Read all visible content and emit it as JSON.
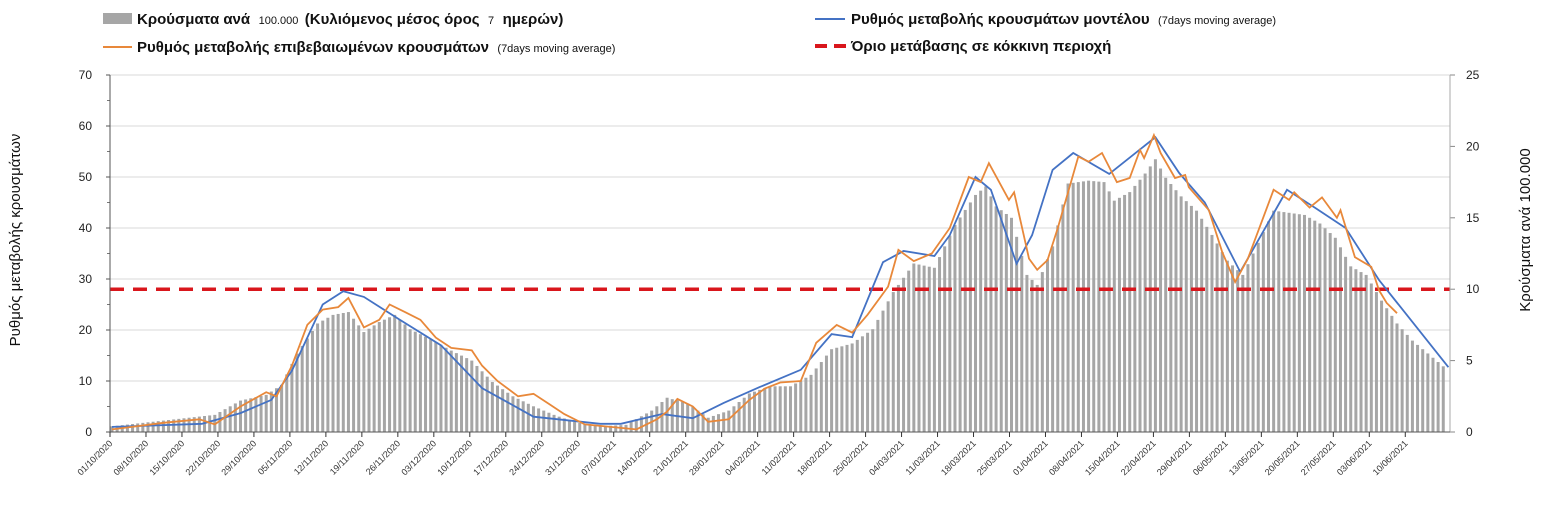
{
  "chart_data": {
    "type": "bar+line",
    "legend": {
      "bars": {
        "parts": [
          "Κρούσματα ανά",
          "100.000",
          "(Κυλιόμενος μέσος όρος",
          "7",
          "ημερών)"
        ]
      },
      "confirmed": {
        "main": "Ρυθμός μεταβολής επιβεβαιωμένων κρουσμάτων",
        "note": "(7days moving average)"
      },
      "model": {
        "main": "Ρυθμός μεταβολής κρουσμάτων μοντέλου",
        "note": "(7days moving average)"
      },
      "threshold": {
        "main": "Όριο μετάβασης σε κόκκινη περιοχή"
      }
    },
    "ylabel_left": "Ρυθμός μεταβολής κρουσμάτων",
    "ylabel_right": "Κρούσματα ανά 100.000",
    "ylim_left": [
      0,
      70
    ],
    "yticks_left": [
      "0",
      "10",
      "20",
      "30",
      "40",
      "50",
      "60",
      "70"
    ],
    "ylim_right": [
      0,
      25
    ],
    "yticks_right": [
      "0",
      "5",
      "10",
      "15",
      "20",
      "25"
    ],
    "x_start": "01/10/2020",
    "n_days": 261,
    "xticks": [
      "01/10/2020",
      "08/10/2020",
      "15/10/2020",
      "22/10/2020",
      "29/10/2020",
      "05/11/2020",
      "12/11/2020",
      "19/11/2020",
      "26/11/2020",
      "03/12/2020",
      "10/12/2020",
      "17/12/2020",
      "24/12/2020",
      "31/12/2020",
      "07/01/2021",
      "14/01/2021",
      "21/01/2021",
      "28/01/2021",
      "04/02/2021",
      "11/02/2021",
      "18/02/2021",
      "25/02/2021",
      "04/03/2021",
      "11/03/2021",
      "18/03/2021",
      "25/03/2021",
      "01/04/2021",
      "08/04/2021",
      "15/04/2021",
      "22/04/2021",
      "29/04/2021",
      "06/05/2021",
      "13/05/2021",
      "20/05/2021",
      "27/05/2021",
      "03/06/2021",
      "10/06/2021"
    ],
    "threshold_left": 28,
    "colors": {
      "bars": "#a6a6a6",
      "confirmed": "#e8883a",
      "model": "#4472c4",
      "threshold": "#d9161c",
      "grid": "#d9d9d9"
    },
    "series": [
      {
        "name": "cases_per_100k_right_axis",
        "axis": "right",
        "kind": "bar",
        "points": [
          [
            0,
            0.4
          ],
          [
            10,
            0.8
          ],
          [
            20,
            1.2
          ],
          [
            25,
            2.2
          ],
          [
            30,
            2.6
          ],
          [
            33,
            3.3
          ],
          [
            36,
            5.5
          ],
          [
            40,
            7.6
          ],
          [
            43,
            8.2
          ],
          [
            46,
            8.4
          ],
          [
            49,
            7.0
          ],
          [
            52,
            7.7
          ],
          [
            55,
            8.2
          ],
          [
            58,
            7.2
          ],
          [
            62,
            6.5
          ],
          [
            66,
            5.7
          ],
          [
            70,
            5.0
          ],
          [
            74,
            3.5
          ],
          [
            78,
            2.5
          ],
          [
            82,
            1.8
          ],
          [
            86,
            1.2
          ],
          [
            90,
            0.7
          ],
          [
            95,
            0.4
          ],
          [
            100,
            0.5
          ],
          [
            105,
            1.5
          ],
          [
            108,
            2.4
          ],
          [
            112,
            2.0
          ],
          [
            116,
            1.0
          ],
          [
            120,
            1.5
          ],
          [
            124,
            2.7
          ],
          [
            128,
            3.2
          ],
          [
            132,
            3.2
          ],
          [
            136,
            4.0
          ],
          [
            140,
            5.8
          ],
          [
            144,
            6.2
          ],
          [
            148,
            7.2
          ],
          [
            152,
            9.8
          ],
          [
            156,
            11.8
          ],
          [
            160,
            11.5
          ],
          [
            164,
            14.5
          ],
          [
            168,
            16.6
          ],
          [
            170,
            17.2
          ],
          [
            172,
            15.8
          ],
          [
            175,
            15.0
          ],
          [
            178,
            11.0
          ],
          [
            180,
            10.3
          ],
          [
            183,
            13.0
          ],
          [
            186,
            17.4
          ],
          [
            190,
            17.6
          ],
          [
            193,
            17.5
          ],
          [
            195,
            16.2
          ],
          [
            198,
            16.8
          ],
          [
            201,
            18.1
          ],
          [
            203,
            19.1
          ],
          [
            205,
            17.8
          ],
          [
            208,
            16.5
          ],
          [
            211,
            15.5
          ],
          [
            214,
            13.8
          ],
          [
            217,
            12.0
          ],
          [
            220,
            11.0
          ],
          [
            222,
            12.5
          ],
          [
            226,
            15.5
          ],
          [
            228,
            15.4
          ],
          [
            232,
            15.2
          ],
          [
            235,
            14.6
          ],
          [
            238,
            13.6
          ],
          [
            241,
            11.6
          ],
          [
            244,
            11.0
          ],
          [
            247,
            9.2
          ],
          [
            250,
            7.6
          ],
          [
            253,
            6.4
          ],
          [
            256,
            5.5
          ],
          [
            260,
            4.3
          ]
        ]
      },
      {
        "name": "confirmed_rate",
        "axis": "left",
        "kind": "line",
        "points": [
          [
            0,
            0.5
          ],
          [
            10,
            1.8
          ],
          [
            17,
            2.5
          ],
          [
            20,
            1.5
          ],
          [
            25,
            5
          ],
          [
            30,
            7.8
          ],
          [
            32,
            7
          ],
          [
            35,
            13
          ],
          [
            38,
            21
          ],
          [
            41,
            24
          ],
          [
            44,
            24.5
          ],
          [
            46,
            26.3
          ],
          [
            49,
            20.5
          ],
          [
            52,
            22
          ],
          [
            54,
            25
          ],
          [
            57,
            23.5
          ],
          [
            60,
            22
          ],
          [
            63,
            18.5
          ],
          [
            66,
            16.5
          ],
          [
            70,
            16
          ],
          [
            72,
            13
          ],
          [
            75,
            10
          ],
          [
            79,
            7
          ],
          [
            82,
            7.5
          ],
          [
            85,
            5.5
          ],
          [
            88,
            3.5
          ],
          [
            92,
            1.5
          ],
          [
            97,
            1
          ],
          [
            102,
            0.5
          ],
          [
            106,
            2.5
          ],
          [
            108,
            4
          ],
          [
            110,
            6.5
          ],
          [
            113,
            5
          ],
          [
            116,
            2
          ],
          [
            120,
            2.5
          ],
          [
            124,
            6.3
          ],
          [
            127,
            8.5
          ],
          [
            130,
            9.7
          ],
          [
            134,
            10
          ],
          [
            137,
            17.5
          ],
          [
            141,
            21
          ],
          [
            144,
            19.5
          ],
          [
            147,
            23
          ],
          [
            151,
            28.5
          ],
          [
            153,
            35.7
          ],
          [
            156,
            33.5
          ],
          [
            159.5,
            35
          ],
          [
            163,
            40
          ],
          [
            166.7,
            50
          ],
          [
            169,
            49
          ],
          [
            170.6,
            52.7
          ],
          [
            174.5,
            45.5
          ],
          [
            175.5,
            47
          ],
          [
            178.4,
            34
          ],
          [
            180,
            31.8
          ],
          [
            182,
            33.7
          ],
          [
            184,
            40
          ],
          [
            188,
            54
          ],
          [
            190,
            53
          ],
          [
            192.6,
            54.7
          ],
          [
            195.5,
            49
          ],
          [
            198,
            49.8
          ],
          [
            200,
            55.3
          ],
          [
            200.8,
            53.7
          ],
          [
            202.7,
            58.2
          ],
          [
            204,
            54.7
          ],
          [
            206.8,
            49.8
          ],
          [
            208.8,
            50.4
          ],
          [
            209.5,
            48
          ],
          [
            213.4,
            43.5
          ],
          [
            216,
            35.3
          ],
          [
            218.5,
            29.4
          ],
          [
            221,
            34
          ],
          [
            226,
            47.5
          ],
          [
            229,
            45.5
          ],
          [
            230,
            47
          ],
          [
            233,
            44
          ],
          [
            235.4,
            46
          ],
          [
            238.3,
            42
          ],
          [
            239,
            43.5
          ],
          [
            241.8,
            34.3
          ],
          [
            245,
            32.4
          ],
          [
            246.5,
            27.8
          ],
          [
            248,
            25.3
          ],
          [
            250,
            23.3
          ]
        ]
      },
      {
        "name": "model_rate",
        "axis": "left",
        "kind": "line",
        "points": [
          [
            0,
            1
          ],
          [
            17.5,
            1.6
          ],
          [
            25,
            3.7
          ],
          [
            31,
            6.3
          ],
          [
            35,
            12
          ],
          [
            41,
            25
          ],
          [
            45,
            27.6
          ],
          [
            49,
            26.5
          ],
          [
            56,
            22
          ],
          [
            64,
            17
          ],
          [
            72,
            8.6
          ],
          [
            82,
            3
          ],
          [
            95,
            1.6
          ],
          [
            99,
            1.6
          ],
          [
            107,
            3.5
          ],
          [
            113,
            2.7
          ],
          [
            119,
            5.7
          ],
          [
            126,
            8.8
          ],
          [
            134,
            12.2
          ],
          [
            140,
            19.2
          ],
          [
            144,
            18.6
          ],
          [
            150,
            33.3
          ],
          [
            154,
            35.5
          ],
          [
            160,
            34.5
          ],
          [
            163,
            38.6
          ],
          [
            168,
            50
          ],
          [
            171,
            47.5
          ],
          [
            176,
            33
          ],
          [
            179,
            38.6
          ],
          [
            183,
            51.4
          ],
          [
            187,
            54.7
          ],
          [
            194,
            50.6
          ],
          [
            203,
            57.8
          ],
          [
            207.6,
            50.8
          ],
          [
            212.6,
            45
          ],
          [
            219.5,
            31.4
          ],
          [
            228.6,
            47.5
          ],
          [
            234,
            44
          ],
          [
            240,
            40
          ],
          [
            246.5,
            29.8
          ],
          [
            260,
            12.7
          ]
        ]
      }
    ]
  }
}
